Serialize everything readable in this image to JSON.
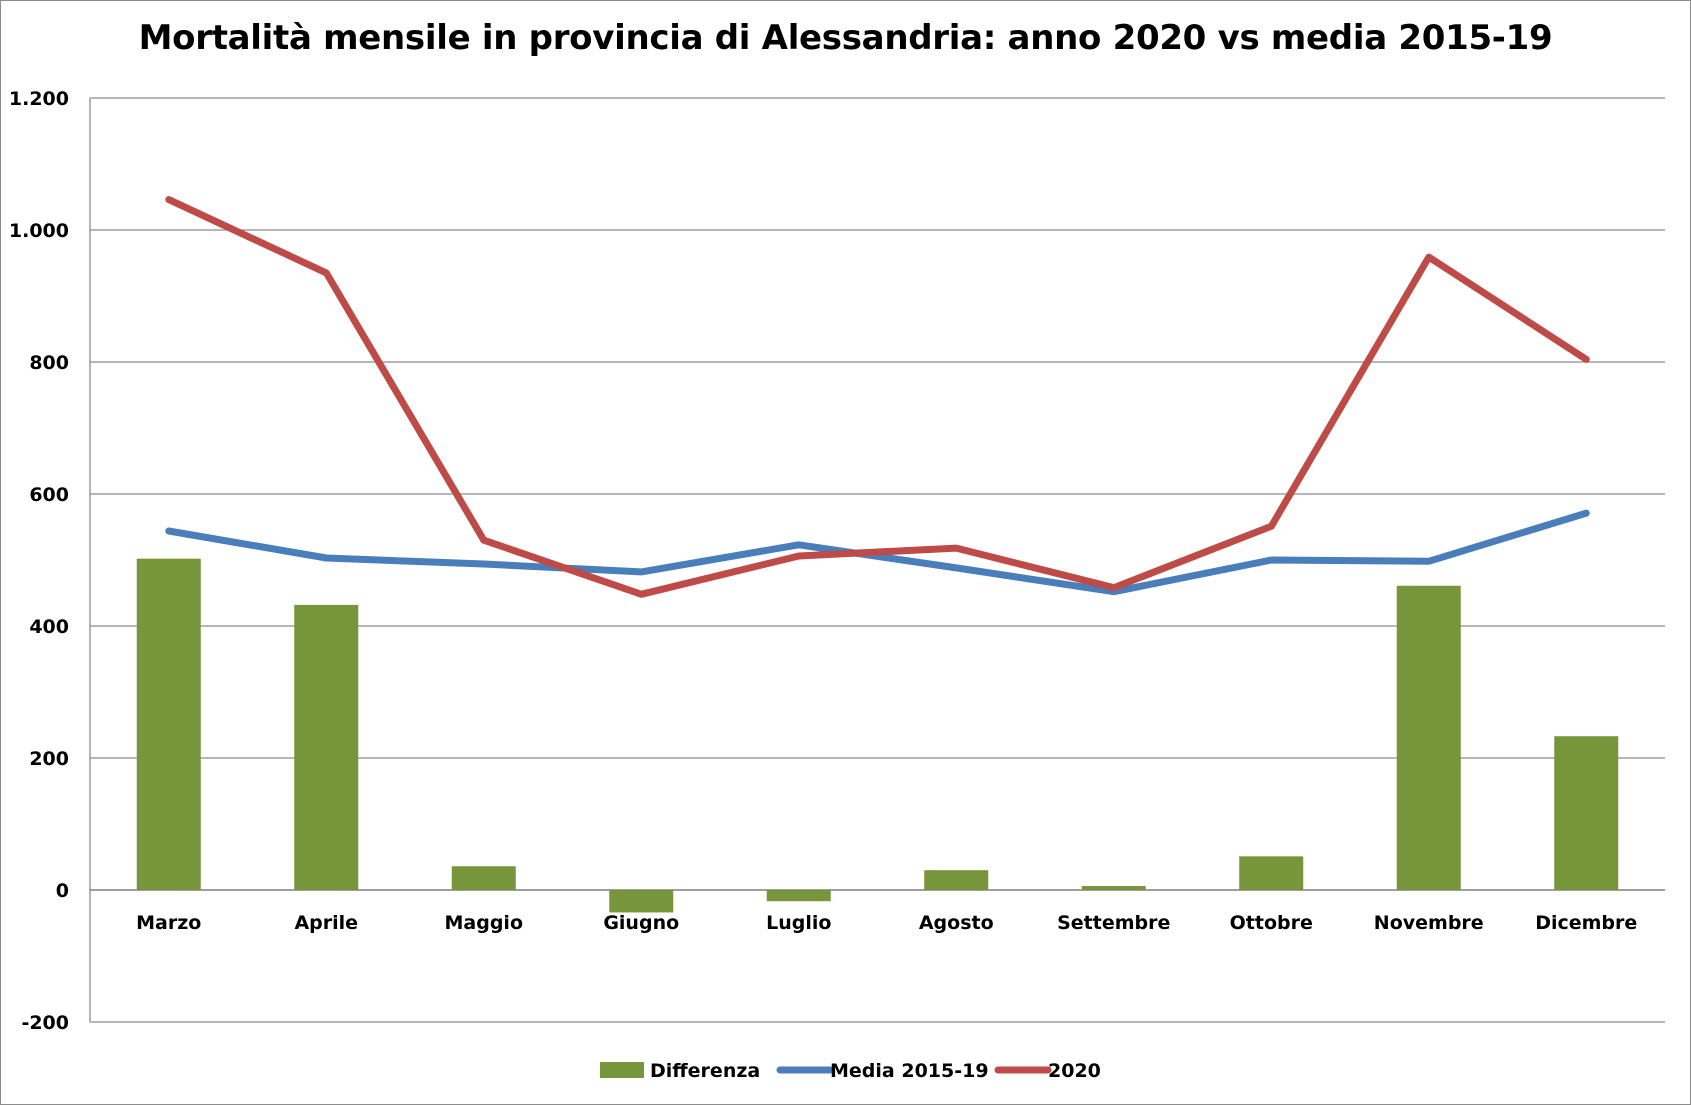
{
  "chart_data": {
    "type": "bar",
    "title": "Mortalità mensile in provincia di Alessandria: anno 2020 vs media 2015-19",
    "categories": [
      "Marzo",
      "Aprile",
      "Maggio",
      "Giugno",
      "Luglio",
      "Agosto",
      "Settembre",
      "Ottobre",
      "Novembre",
      "Dicembre"
    ],
    "series": [
      {
        "name": "Differenza",
        "kind": "bar",
        "color": "#77963b",
        "values": [
          502,
          432,
          36,
          -34,
          -17,
          30,
          6,
          51,
          461,
          233
        ]
      },
      {
        "name": "Media 2015-19",
        "kind": "line",
        "color": "#4a7ebb",
        "values": [
          544,
          503,
          494,
          482,
          523,
          488,
          452,
          500,
          498,
          571
        ]
      },
      {
        "name": "2020",
        "kind": "line",
        "color": "#be4b48",
        "values": [
          1046,
          935,
          530,
          448,
          506,
          518,
          458,
          551,
          959,
          804
        ]
      }
    ],
    "ylim": [
      -200,
      1200
    ],
    "yticks": [
      -200,
      0,
      200,
      400,
      600,
      800,
      1000,
      1200
    ],
    "ytick_labels": [
      "-200",
      "0",
      "200",
      "400",
      "600",
      "800",
      "1.000",
      "1.200"
    ],
    "grid": true,
    "legend_position": "bottom"
  }
}
